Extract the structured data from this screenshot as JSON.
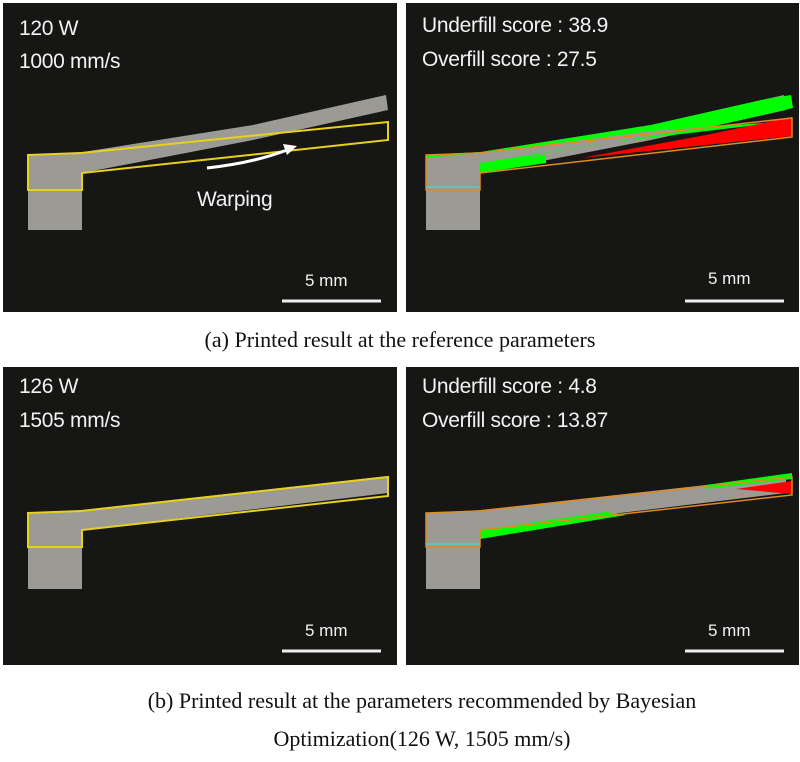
{
  "figure": {
    "a": {
      "left": {
        "power": "120 W",
        "speed": "1000 mm/s",
        "annotation": "Warping",
        "scale": "5 mm"
      },
      "right": {
        "underfill": "Underfill score : 38.9",
        "overfill": "Overfill score : 27.5",
        "scale": "5 mm"
      },
      "caption": "(a) Printed result at the reference parameters"
    },
    "b": {
      "left": {
        "power": "126 W",
        "speed": "1505 mm/s",
        "scale": "5 mm"
      },
      "right": {
        "underfill": "Underfill score : 4.8",
        "overfill": "Overfill score : 13.87",
        "scale": "5 mm"
      },
      "caption_line1": "(b) Printed result at the parameters recommended by Bayesian",
      "caption_line2": "Optimization(126 W, 1505 mm/s)"
    },
    "colors": {
      "underfill": "#ff0000",
      "overfill": "#00ff00",
      "target_outline": "#e6d21e"
    }
  }
}
